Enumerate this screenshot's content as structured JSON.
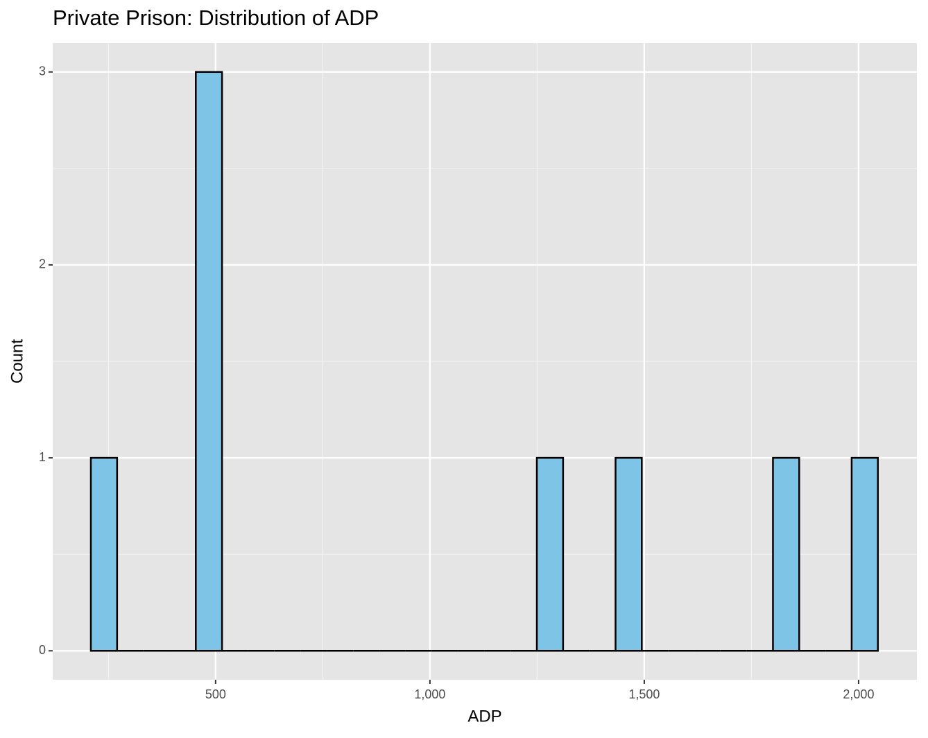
{
  "chart_data": {
    "type": "histogram",
    "title": "Private Prison: Distribution of ADP",
    "x_label": "ADP",
    "y_label": "Count",
    "bins": [
      209,
      270.2,
      331.4,
      392.6,
      453.8,
      515,
      576.2,
      637.4,
      698.6,
      759.8,
      821,
      882.2,
      943.4,
      1004.6,
      1065.8,
      1127,
      1188.2,
      1249.4,
      1310.6,
      1371.8,
      1433,
      1494.2,
      1555.4,
      1616.6,
      1677.8,
      1739,
      1800.2,
      1861.4,
      1922.6,
      1983.8,
      2045
    ],
    "values": [
      1,
      0,
      0,
      0,
      3,
      0,
      0,
      0,
      0,
      0,
      0,
      0,
      0,
      0,
      0,
      0,
      0,
      1,
      0,
      0,
      1,
      0,
      0,
      0,
      0,
      0,
      1,
      0,
      0,
      1
    ],
    "color": "#7ec4e6",
    "edge_color": "#000000",
    "xlim": [
      120,
      2136
    ],
    "ylim": [
      -0.15,
      3.15
    ],
    "xticks": [
      500,
      {
        "value": 1000,
        "label": "1,000"
      },
      {
        "value": 1500,
        "label": "1,500"
      },
      {
        "value": 2000,
        "label": "2,000"
      }
    ],
    "yticks": [
      0,
      1,
      2,
      3
    ],
    "grid": true,
    "minor_grid": true
  }
}
